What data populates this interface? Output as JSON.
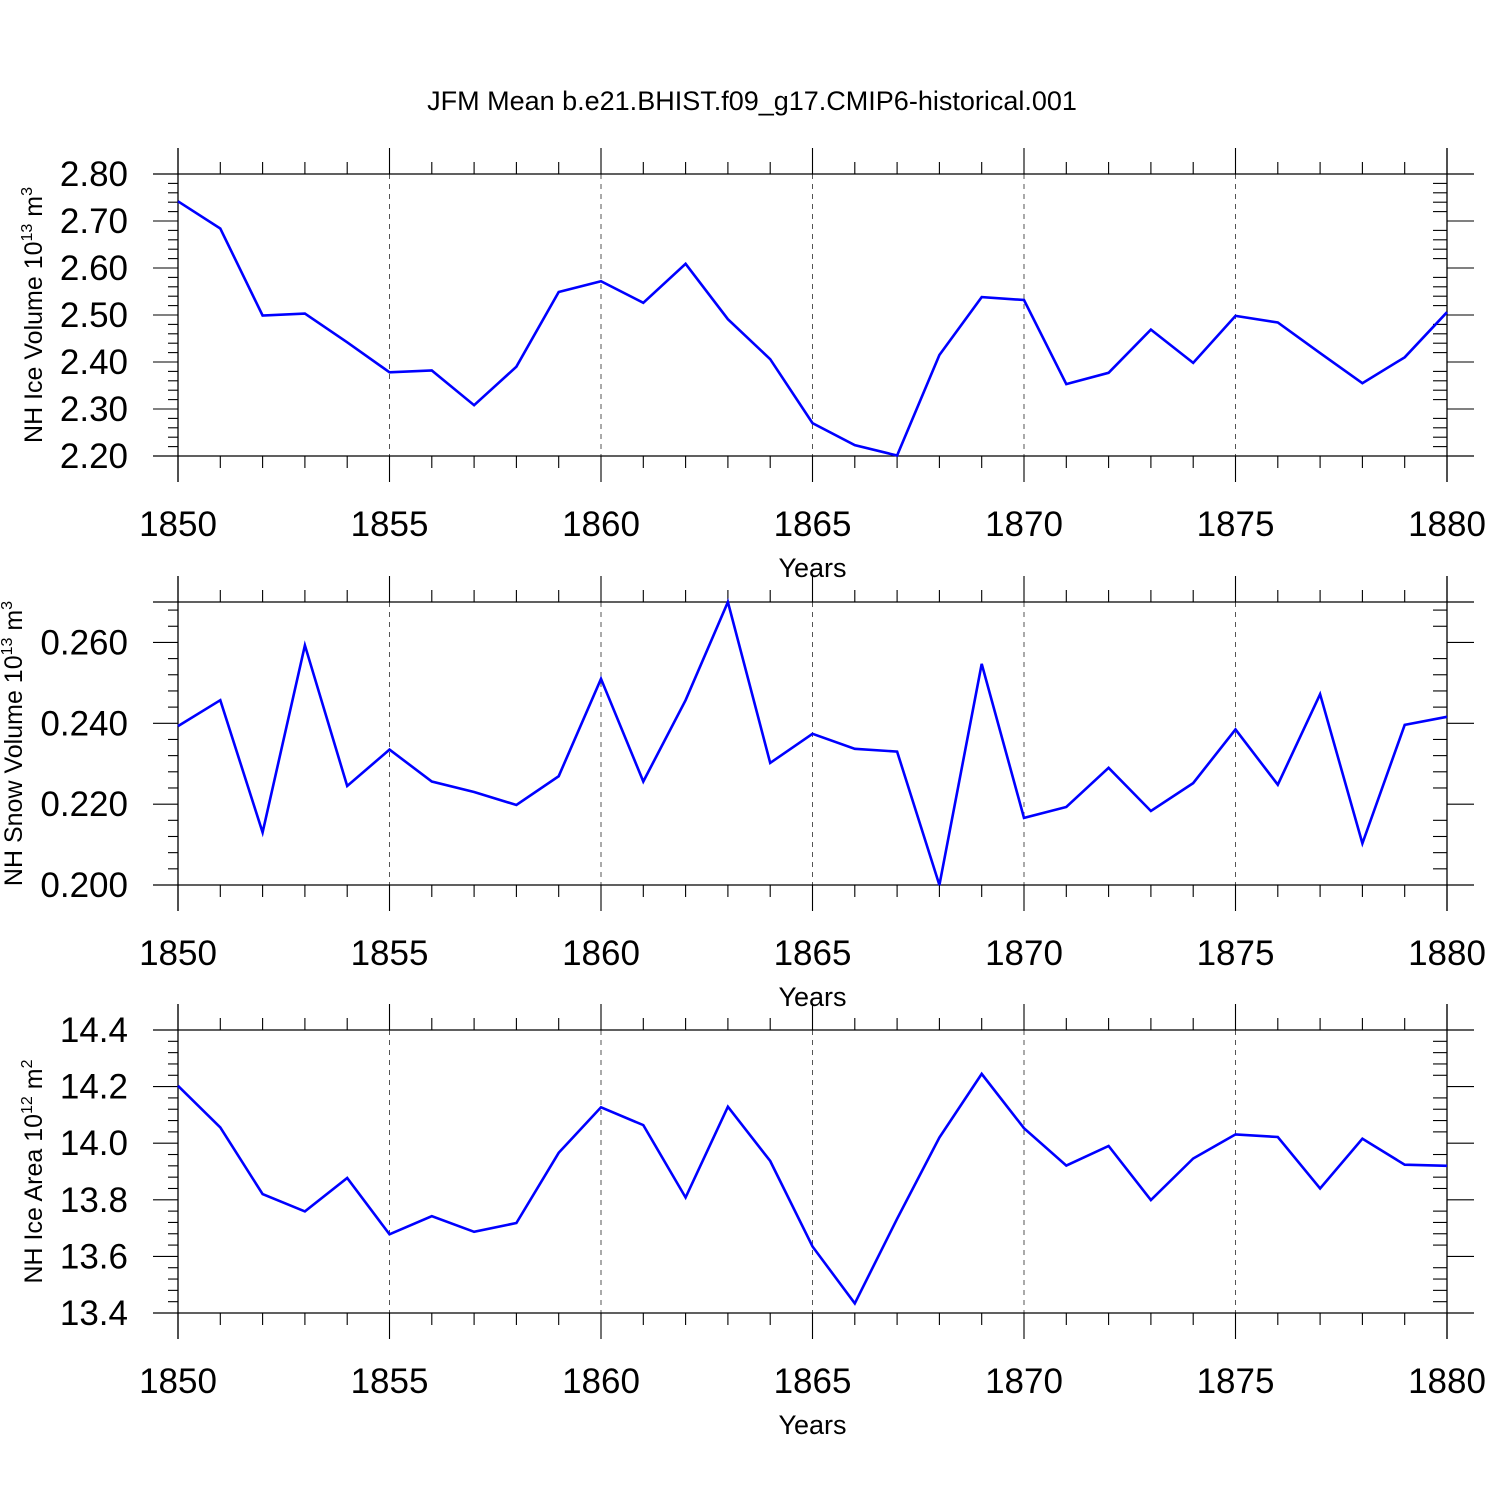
{
  "figure_title": "JFM Mean b.e21.BHIST.f09_g17.CMIP6-historical.001",
  "colors": {
    "series": "#0000ff",
    "axes": "#000000",
    "grid": "#555555"
  },
  "chart_data": [
    {
      "type": "line",
      "id": "ice-volume",
      "title": "",
      "ylabel": {
        "prefix": "NH Ice Volume 10",
        "exp1": "13",
        "mid": " m",
        "exp2": "3"
      },
      "xlabel": "Years",
      "xlim": [
        1850,
        1880
      ],
      "ylim": [
        2.2,
        2.8
      ],
      "yticks": [
        2.2,
        2.3,
        2.4,
        2.5,
        2.6,
        2.7,
        2.8
      ],
      "ytick_labels": [
        "2.20",
        "2.30",
        "2.40",
        "2.50",
        "2.60",
        "2.70",
        "2.80"
      ],
      "yminor_step": 0.02,
      "xticks": [
        1850,
        1855,
        1860,
        1865,
        1870,
        1875,
        1880
      ],
      "xtick_labels": [
        "1850",
        "1855",
        "1860",
        "1865",
        "1870",
        "1875",
        "1880"
      ],
      "grid_x": [
        1855,
        1860,
        1865,
        1870,
        1875
      ],
      "series": [
        {
          "name": "NH Ice Volume",
          "x": [
            1850,
            1851,
            1852,
            1853,
            1854,
            1855,
            1856,
            1857,
            1858,
            1859,
            1860,
            1861,
            1862,
            1863,
            1864,
            1865,
            1866,
            1867,
            1868,
            1869,
            1870,
            1871,
            1872,
            1873,
            1874,
            1875,
            1876,
            1877,
            1878,
            1879,
            1880
          ],
          "values": [
            2.742,
            2.684,
            2.499,
            2.503,
            2.442,
            2.378,
            2.382,
            2.308,
            2.39,
            2.549,
            2.572,
            2.526,
            2.609,
            2.491,
            2.406,
            2.27,
            2.223,
            2.201,
            2.415,
            2.538,
            2.532,
            2.353,
            2.377,
            2.469,
            2.398,
            2.498,
            2.484,
            2.419,
            2.355,
            2.41,
            2.506
          ]
        }
      ]
    },
    {
      "type": "line",
      "id": "snow-volume",
      "title": "",
      "ylabel": {
        "prefix": "NH Snow Volume 10",
        "exp1": "13",
        "mid": " m",
        "exp2": "3"
      },
      "xlabel": "Years",
      "xlim": [
        1850,
        1880
      ],
      "ylim": [
        0.2,
        0.27
      ],
      "yticks": [
        0.2,
        0.22,
        0.24,
        0.26
      ],
      "ytick_labels": [
        "0.200",
        "0.220",
        "0.240",
        "0.260"
      ],
      "yminor_step": 0.004,
      "xticks": [
        1850,
        1855,
        1860,
        1865,
        1870,
        1875,
        1880
      ],
      "xtick_labels": [
        "1850",
        "1855",
        "1860",
        "1865",
        "1870",
        "1875",
        "1880"
      ],
      "grid_x": [
        1855,
        1860,
        1865,
        1870,
        1875
      ],
      "series": [
        {
          "name": "NH Snow Volume",
          "x": [
            1850,
            1851,
            1852,
            1853,
            1854,
            1855,
            1856,
            1857,
            1858,
            1859,
            1860,
            1861,
            1862,
            1863,
            1864,
            1865,
            1866,
            1867,
            1868,
            1869,
            1870,
            1871,
            1872,
            1873,
            1874,
            1875,
            1876,
            1877,
            1878,
            1879,
            1880
          ],
          "values": [
            0.2393,
            0.2457,
            0.213,
            0.2593,
            0.2245,
            0.2335,
            0.2256,
            0.223,
            0.2198,
            0.2269,
            0.251,
            0.2256,
            0.2457,
            0.27,
            0.2302,
            0.2374,
            0.2337,
            0.233,
            0.2,
            0.2547,
            0.2166,
            0.2193,
            0.229,
            0.2183,
            0.2252,
            0.2385,
            0.2248,
            0.2472,
            0.2103,
            0.2396,
            0.2416
          ]
        }
      ]
    },
    {
      "type": "line",
      "id": "ice-area",
      "title": "",
      "ylabel": {
        "prefix": "NH Ice Area 10",
        "exp1": "12",
        "mid": " m",
        "exp2": "2"
      },
      "xlabel": "Years",
      "xlim": [
        1850,
        1880
      ],
      "ylim": [
        13.4,
        14.4
      ],
      "yticks": [
        13.4,
        13.6,
        13.8,
        14.0,
        14.2,
        14.4
      ],
      "ytick_labels": [
        "13.4",
        "13.6",
        "13.8",
        "14.0",
        "14.2",
        "14.4"
      ],
      "yminor_step": 0.04,
      "xticks": [
        1850,
        1855,
        1860,
        1865,
        1870,
        1875,
        1880
      ],
      "xtick_labels": [
        "1850",
        "1855",
        "1860",
        "1865",
        "1870",
        "1875",
        "1880"
      ],
      "grid_x": [
        1855,
        1860,
        1865,
        1870,
        1875
      ],
      "series": [
        {
          "name": "NH Ice Area",
          "x": [
            1850,
            1851,
            1852,
            1853,
            1854,
            1855,
            1856,
            1857,
            1858,
            1859,
            1860,
            1861,
            1862,
            1863,
            1864,
            1865,
            1866,
            1867,
            1868,
            1869,
            1870,
            1871,
            1872,
            1873,
            1874,
            1875,
            1876,
            1877,
            1878,
            1879,
            1880
          ],
          "values": [
            14.203,
            14.056,
            13.82,
            13.759,
            13.877,
            13.678,
            13.742,
            13.687,
            13.718,
            13.966,
            14.127,
            14.064,
            13.808,
            14.129,
            13.937,
            13.635,
            13.434,
            13.733,
            14.02,
            14.245,
            14.053,
            13.921,
            13.99,
            13.799,
            13.946,
            14.031,
            14.022,
            13.84,
            14.016,
            13.924,
            13.92
          ]
        }
      ]
    }
  ]
}
